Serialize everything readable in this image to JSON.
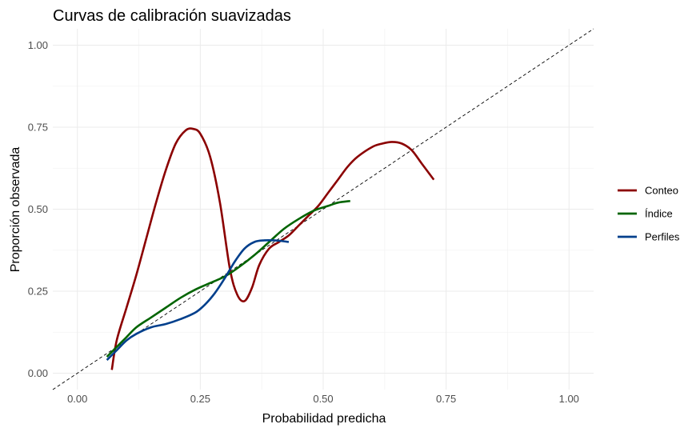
{
  "chart_data": {
    "type": "line",
    "title": "Curvas de calibración suavizadas",
    "xlabel": "Probabilidad predicha",
    "ylabel": "Proporción observada",
    "xlim": [
      -0.05,
      1.05
    ],
    "ylim": [
      -0.05,
      1.05
    ],
    "xticks": [
      0,
      0.25,
      0.5,
      0.75,
      1
    ],
    "yticks": [
      0,
      0.25,
      0.5,
      0.75,
      1
    ],
    "xtick_labels": [
      "0.00",
      "0.25",
      "0.50",
      "0.75",
      "1.00"
    ],
    "ytick_labels": [
      "0.00",
      "0.25",
      "0.50",
      "0.75",
      "1.00"
    ],
    "grid": true,
    "legend_position": "right",
    "reference_line": {
      "x": [
        -0.05,
        1.05
      ],
      "y": [
        -0.05,
        1.05
      ],
      "style": "dashed",
      "color": "#000000"
    },
    "series": [
      {
        "name": "Conteo",
        "color": "#8B0000",
        "x": [
          0.07,
          0.08,
          0.1,
          0.12,
          0.14,
          0.16,
          0.18,
          0.2,
          0.22,
          0.235,
          0.25,
          0.27,
          0.29,
          0.31,
          0.325,
          0.34,
          0.355,
          0.37,
          0.39,
          0.41,
          0.43,
          0.45,
          0.47,
          0.49,
          0.51,
          0.53,
          0.55,
          0.57,
          0.6,
          0.62,
          0.64,
          0.66,
          0.68,
          0.7,
          0.725
        ],
        "y": [
          0.01,
          0.1,
          0.2,
          0.3,
          0.41,
          0.52,
          0.62,
          0.7,
          0.74,
          0.745,
          0.73,
          0.66,
          0.52,
          0.32,
          0.24,
          0.22,
          0.26,
          0.33,
          0.38,
          0.4,
          0.42,
          0.45,
          0.48,
          0.51,
          0.55,
          0.59,
          0.63,
          0.66,
          0.69,
          0.7,
          0.705,
          0.7,
          0.68,
          0.64,
          0.59
        ]
      },
      {
        "name": "Índice",
        "color": "#006400",
        "x": [
          0.06,
          0.08,
          0.1,
          0.12,
          0.15,
          0.18,
          0.21,
          0.24,
          0.27,
          0.3,
          0.33,
          0.36,
          0.39,
          0.42,
          0.45,
          0.48,
          0.51,
          0.53,
          0.555
        ],
        "y": [
          0.05,
          0.08,
          0.11,
          0.14,
          0.17,
          0.2,
          0.23,
          0.255,
          0.275,
          0.295,
          0.325,
          0.36,
          0.4,
          0.44,
          0.47,
          0.495,
          0.51,
          0.52,
          0.525
        ]
      },
      {
        "name": "Perfiles",
        "color": "#003F8C",
        "x": [
          0.06,
          0.08,
          0.1,
          0.12,
          0.15,
          0.18,
          0.21,
          0.24,
          0.26,
          0.28,
          0.3,
          0.32,
          0.34,
          0.36,
          0.38,
          0.4,
          0.415,
          0.43
        ],
        "y": [
          0.04,
          0.07,
          0.1,
          0.12,
          0.14,
          0.15,
          0.165,
          0.185,
          0.21,
          0.245,
          0.29,
          0.34,
          0.38,
          0.4,
          0.405,
          0.405,
          0.403,
          0.4
        ]
      }
    ]
  }
}
